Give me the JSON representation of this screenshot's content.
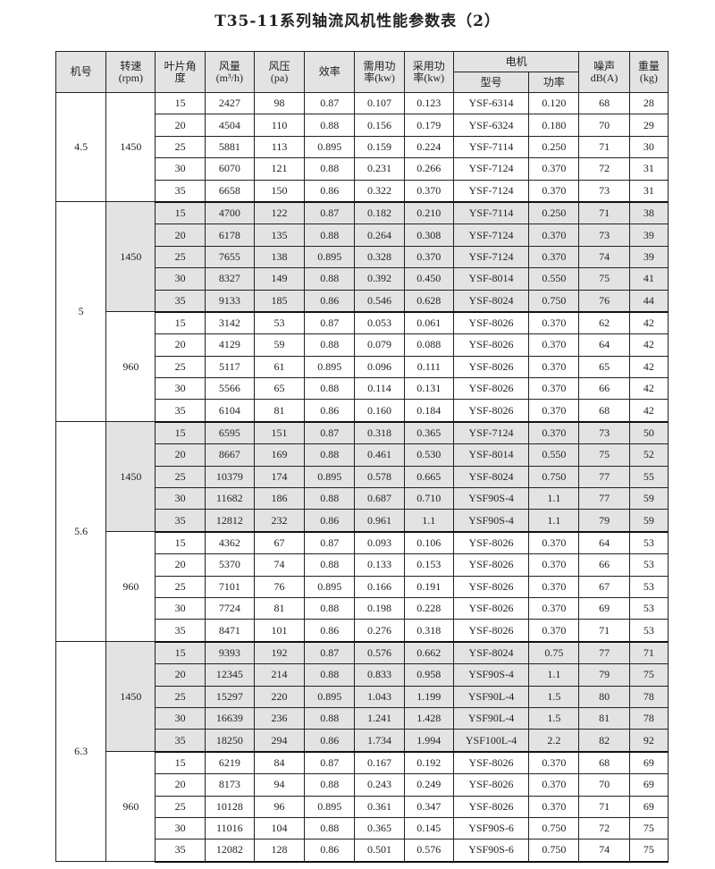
{
  "title": "T35-11系列轴流风机性能参数表（2）",
  "headers": {
    "model": "机号",
    "speed": [
      "转速",
      "(rpm)"
    ],
    "angle": [
      "叶片角",
      "度"
    ],
    "flow": [
      "风量",
      "(m³/h)"
    ],
    "pressure": [
      "风压",
      "(pa)"
    ],
    "efficiency": "效率",
    "required_power": [
      "需用功",
      "率(kw)"
    ],
    "adopted_power": [
      "采用功",
      "率(kw)"
    ],
    "motor": "电机",
    "motor_type": "型号",
    "motor_power": "功率",
    "noise": [
      "噪声",
      "dB(A)"
    ],
    "weight": [
      "重量",
      "(kg)"
    ]
  },
  "groups": [
    {
      "model": "4.5",
      "speeds": [
        {
          "rpm": "1450",
          "shaded": false,
          "rows": [
            [
              "15",
              "2427",
              "98",
              "0.87",
              "0.107",
              "0.123",
              "YSF-6314",
              "0.120",
              "68",
              "28"
            ],
            [
              "20",
              "4504",
              "110",
              "0.88",
              "0.156",
              "0.179",
              "YSF-6324",
              "0.180",
              "70",
              "29"
            ],
            [
              "25",
              "5881",
              "113",
              "0.895",
              "0.159",
              "0.224",
              "YSF-7114",
              "0.250",
              "71",
              "30"
            ],
            [
              "30",
              "6070",
              "121",
              "0.88",
              "0.231",
              "0.266",
              "YSF-7124",
              "0.370",
              "72",
              "31"
            ],
            [
              "35",
              "6658",
              "150",
              "0.86",
              "0.322",
              "0.370",
              "YSF-7124",
              "0.370",
              "73",
              "31"
            ]
          ]
        }
      ]
    },
    {
      "model": "5",
      "speeds": [
        {
          "rpm": "1450",
          "shaded": true,
          "rows": [
            [
              "15",
              "4700",
              "122",
              "0.87",
              "0.182",
              "0.210",
              "YSF-7114",
              "0.250",
              "71",
              "38"
            ],
            [
              "20",
              "6178",
              "135",
              "0.88",
              "0.264",
              "0.308",
              "YSF-7124",
              "0.370",
              "73",
              "39"
            ],
            [
              "25",
              "7655",
              "138",
              "0.895",
              "0.328",
              "0.370",
              "YSF-7124",
              "0.370",
              "74",
              "39"
            ],
            [
              "30",
              "8327",
              "149",
              "0.88",
              "0.392",
              "0.450",
              "YSF-8014",
              "0.550",
              "75",
              "41"
            ],
            [
              "35",
              "9133",
              "185",
              "0.86",
              "0.546",
              "0.628",
              "YSF-8024",
              "0.750",
              "76",
              "44"
            ]
          ]
        },
        {
          "rpm": "960",
          "shaded": false,
          "rows": [
            [
              "15",
              "3142",
              "53",
              "0.87",
              "0.053",
              "0.061",
              "YSF-8026",
              "0.370",
              "62",
              "42"
            ],
            [
              "20",
              "4129",
              "59",
              "0.88",
              "0.079",
              "0.088",
              "YSF-8026",
              "0.370",
              "64",
              "42"
            ],
            [
              "25",
              "5117",
              "61",
              "0.895",
              "0.096",
              "0.111",
              "YSF-8026",
              "0.370",
              "65",
              "42"
            ],
            [
              "30",
              "5566",
              "65",
              "0.88",
              "0.114",
              "0.131",
              "YSF-8026",
              "0.370",
              "66",
              "42"
            ],
            [
              "35",
              "6104",
              "81",
              "0.86",
              "0.160",
              "0.184",
              "YSF-8026",
              "0.370",
              "68",
              "42"
            ]
          ]
        }
      ]
    },
    {
      "model": "5.6",
      "speeds": [
        {
          "rpm": "1450",
          "shaded": true,
          "rows": [
            [
              "15",
              "6595",
              "151",
              "0.87",
              "0.318",
              "0.365",
              "YSF-7124",
              "0.370",
              "73",
              "50"
            ],
            [
              "20",
              "8667",
              "169",
              "0.88",
              "0.461",
              "0.530",
              "YSF-8014",
              "0.550",
              "75",
              "52"
            ],
            [
              "25",
              "10379",
              "174",
              "0.895",
              "0.578",
              "0.665",
              "YSF-8024",
              "0.750",
              "77",
              "55"
            ],
            [
              "30",
              "11682",
              "186",
              "0.88",
              "0.687",
              "0.710",
              "YSF90S-4",
              "1.1",
              "77",
              "59"
            ],
            [
              "35",
              "12812",
              "232",
              "0.86",
              "0.961",
              "1.1",
              "YSF90S-4",
              "1.1",
              "79",
              "59"
            ]
          ]
        },
        {
          "rpm": "960",
          "shaded": false,
          "rows": [
            [
              "15",
              "4362",
              "67",
              "0.87",
              "0.093",
              "0.106",
              "YSF-8026",
              "0.370",
              "64",
              "53"
            ],
            [
              "20",
              "5370",
              "74",
              "0.88",
              "0.133",
              "0.153",
              "YSF-8026",
              "0.370",
              "66",
              "53"
            ],
            [
              "25",
              "7101",
              "76",
              "0.895",
              "0.166",
              "0.191",
              "YSF-8026",
              "0.370",
              "67",
              "53"
            ],
            [
              "30",
              "7724",
              "81",
              "0.88",
              "0.198",
              "0.228",
              "YSF-8026",
              "0.370",
              "69",
              "53"
            ],
            [
              "35",
              "8471",
              "101",
              "0.86",
              "0.276",
              "0.318",
              "YSF-8026",
              "0.370",
              "71",
              "53"
            ]
          ]
        }
      ]
    },
    {
      "model": "6.3",
      "speeds": [
        {
          "rpm": "1450",
          "shaded": true,
          "rows": [
            [
              "15",
              "9393",
              "192",
              "0.87",
              "0.576",
              "0.662",
              "YSF-8024",
              "0.75",
              "77",
              "71"
            ],
            [
              "20",
              "12345",
              "214",
              "0.88",
              "0.833",
              "0.958",
              "YSF90S-4",
              "1.1",
              "79",
              "75"
            ],
            [
              "25",
              "15297",
              "220",
              "0.895",
              "1.043",
              "1.199",
              "YSF90L-4",
              "1.5",
              "80",
              "78"
            ],
            [
              "30",
              "16639",
              "236",
              "0.88",
              "1.241",
              "1.428",
              "YSF90L-4",
              "1.5",
              "81",
              "78"
            ],
            [
              "35",
              "18250",
              "294",
              "0.86",
              "1.734",
              "1.994",
              "YSF100L-4",
              "2.2",
              "82",
              "92"
            ]
          ]
        },
        {
          "rpm": "960",
          "shaded": false,
          "rows": [
            [
              "15",
              "6219",
              "84",
              "0.87",
              "0.167",
              "0.192",
              "YSF-8026",
              "0.370",
              "68",
              "69"
            ],
            [
              "20",
              "8173",
              "94",
              "0.88",
              "0.243",
              "0.249",
              "YSF-8026",
              "0.370",
              "70",
              "69"
            ],
            [
              "25",
              "10128",
              "96",
              "0.895",
              "0.361",
              "0.347",
              "YSF-8026",
              "0.370",
              "71",
              "69"
            ],
            [
              "30",
              "11016",
              "104",
              "0.88",
              "0.365",
              "0.145",
              "YSF90S-6",
              "0.750",
              "72",
              "75"
            ],
            [
              "35",
              "12082",
              "128",
              "0.86",
              "0.501",
              "0.576",
              "YSF90S-6",
              "0.750",
              "74",
              "75"
            ]
          ]
        }
      ]
    }
  ],
  "colors": {
    "shade": "#e3e3e3",
    "border": "#222222"
  }
}
